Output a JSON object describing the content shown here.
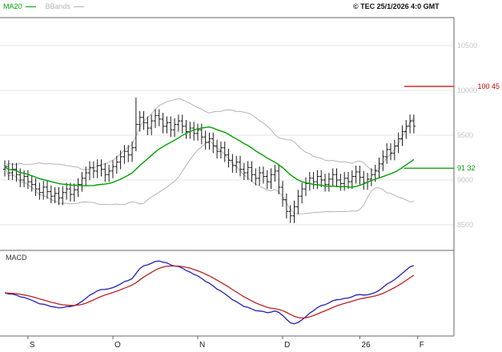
{
  "header": {
    "copyright": "© TEC 25/1/2026 4:0 GMT"
  },
  "legend": {
    "ma20_label": "MA20",
    "bbands_label": "BBands",
    "ma20_color": "#00a000",
    "bbands_color": "#b4b4b4"
  },
  "macd_panel": {
    "label": "MACD"
  },
  "chart_data": {
    "type": "ohlc",
    "title": "",
    "xlabel": "",
    "ylabel": "",
    "grid": true,
    "x_axis": {
      "ticks": [
        {
          "label": "S",
          "index": 6
        },
        {
          "label": "O",
          "index": 28
        },
        {
          "label": "N",
          "index": 50
        },
        {
          "label": "D",
          "index": 72
        },
        {
          "label": "26",
          "index": 92
        },
        {
          "label": "F",
          "index": 107
        }
      ]
    },
    "y_axis": {
      "ticks": [
        "10500",
        "10000",
        "9500",
        "9000",
        "8500"
      ],
      "values": [
        10500,
        10000,
        9500,
        9000,
        8500
      ],
      "range": [
        8223,
        10813
      ]
    },
    "series": {
      "opens": [
        9120,
        9150,
        9080,
        9120,
        9060,
        9000,
        9040,
        8980,
        8950,
        8900,
        8860,
        8920,
        8870,
        8820,
        8850,
        8800,
        8860,
        8900,
        8840,
        8890,
        8950,
        9020,
        9080,
        9140,
        9100,
        9160,
        9120,
        9060,
        9100,
        9150,
        9200,
        9260,
        9320,
        9280,
        9360,
        9620,
        9700,
        9640,
        9580,
        9660,
        9720,
        9680,
        9600,
        9640,
        9560,
        9620,
        9660,
        9600,
        9540,
        9580,
        9520,
        9560,
        9480,
        9420,
        9460,
        9380,
        9320,
        9360,
        9280,
        9220,
        9160,
        9200,
        9120,
        9080,
        9140,
        9060,
        9020,
        9080,
        9040,
        8980,
        9060,
        9100,
        8920,
        8780,
        8650,
        8600,
        8700,
        8820,
        8900,
        8960,
        9020,
        8980,
        9040,
        9000,
        8950,
        9010,
        9060,
        9000,
        8960,
        9020,
        8980,
        9040,
        9090,
        9030,
        8970,
        9010,
        9060,
        9100,
        9180,
        9260,
        9340,
        9300,
        9380,
        9460,
        9540,
        9600,
        9660
      ],
      "highs": [
        9220,
        9220,
        9190,
        9190,
        9130,
        9110,
        9110,
        9050,
        9020,
        8970,
        8990,
        8990,
        8940,
        8920,
        8920,
        8930,
        8970,
        8970,
        8960,
        9020,
        9090,
        9150,
        9210,
        9210,
        9230,
        9230,
        9190,
        9170,
        9220,
        9270,
        9330,
        9390,
        9390,
        9430,
        9920,
        9770,
        9770,
        9710,
        9730,
        9790,
        9790,
        9750,
        9710,
        9710,
        9690,
        9730,
        9730,
        9670,
        9650,
        9650,
        9630,
        9630,
        9550,
        9530,
        9530,
        9450,
        9430,
        9430,
        9350,
        9290,
        9270,
        9270,
        9190,
        9210,
        9210,
        9130,
        9150,
        9150,
        9110,
        9130,
        9170,
        9170,
        8990,
        8850,
        8720,
        8770,
        8890,
        8970,
        9030,
        9090,
        9090,
        9110,
        9110,
        9070,
        9080,
        9130,
        9130,
        9070,
        9090,
        9090,
        9110,
        9160,
        9160,
        9100,
        9080,
        9130,
        9170,
        9250,
        9330,
        9410,
        9410,
        9450,
        9530,
        9610,
        9670,
        9730,
        9730
      ],
      "lows": [
        9040,
        9000,
        9000,
        8980,
        8920,
        8920,
        8900,
        8870,
        8820,
        8780,
        8780,
        8790,
        8740,
        8740,
        8720,
        8720,
        8780,
        8760,
        8760,
        8810,
        8870,
        8940,
        9000,
        9020,
        9020,
        9040,
        8980,
        8980,
        9020,
        9070,
        9120,
        9180,
        9200,
        9200,
        9320,
        9540,
        9560,
        9500,
        9500,
        9580,
        9600,
        9520,
        9520,
        9480,
        9480,
        9540,
        9520,
        9460,
        9460,
        9440,
        9440,
        9400,
        9340,
        9340,
        9300,
        9240,
        9240,
        9200,
        9140,
        9080,
        9080,
        9040,
        9000,
        9000,
        8980,
        8940,
        8940,
        8960,
        8900,
        8900,
        8980,
        8840,
        8700,
        8570,
        8520,
        8520,
        8620,
        8740,
        8820,
        8880,
        8900,
        8900,
        8920,
        8870,
        8870,
        8930,
        8920,
        8880,
        8880,
        8900,
        8900,
        8960,
        8950,
        8890,
        8890,
        8930,
        8980,
        9020,
        9100,
        9180,
        9220,
        9220,
        9300,
        9380,
        9460,
        9520,
        9520
      ],
      "closes": [
        9150,
        9080,
        9120,
        9060,
        9000,
        9040,
        8980,
        8950,
        8900,
        8860,
        8920,
        8870,
        8820,
        8850,
        8800,
        8860,
        8900,
        8840,
        8890,
        8950,
        9020,
        9080,
        9140,
        9100,
        9160,
        9120,
        9060,
        9100,
        9150,
        9200,
        9260,
        9320,
        9280,
        9360,
        9620,
        9700,
        9640,
        9580,
        9660,
        9720,
        9680,
        9600,
        9640,
        9560,
        9620,
        9660,
        9600,
        9540,
        9580,
        9520,
        9560,
        9480,
        9420,
        9460,
        9380,
        9320,
        9360,
        9280,
        9220,
        9160,
        9200,
        9120,
        9080,
        9140,
        9060,
        9020,
        9080,
        9040,
        8980,
        9060,
        9100,
        8920,
        8780,
        8650,
        8600,
        8700,
        8820,
        8900,
        8960,
        9020,
        8980,
        9040,
        9000,
        8950,
        9010,
        9060,
        9000,
        8960,
        9020,
        8980,
        9040,
        9090,
        9030,
        8970,
        9010,
        9060,
        9100,
        9180,
        9260,
        9340,
        9300,
        9380,
        9460,
        9540,
        9600,
        9660,
        9600
      ]
    },
    "indicators": {
      "ma_period": 20,
      "bb_period": 20,
      "bb_stddev": 2,
      "macd_fast": 12,
      "macd_slow": 26,
      "macd_signal": 9
    },
    "levels": [
      {
        "name": "resistance-level",
        "value": 10045,
        "label": "100 45",
        "color": "#cc0000",
        "label_align": "far"
      },
      {
        "name": "support-level",
        "value": 9132,
        "label": "91 32",
        "color": "#009900",
        "label_align": "near"
      }
    ],
    "colors": {
      "grid": "#e4e4e4",
      "axis_label": "#c4c4c4",
      "axis_line": "#666666",
      "x_label": "#222222",
      "bars": "#1a1a1a",
      "ma20": "#00a000",
      "bbands": "#b4b4b4",
      "macd": "#2222bb",
      "macd_signal": "#bb2222"
    }
  }
}
